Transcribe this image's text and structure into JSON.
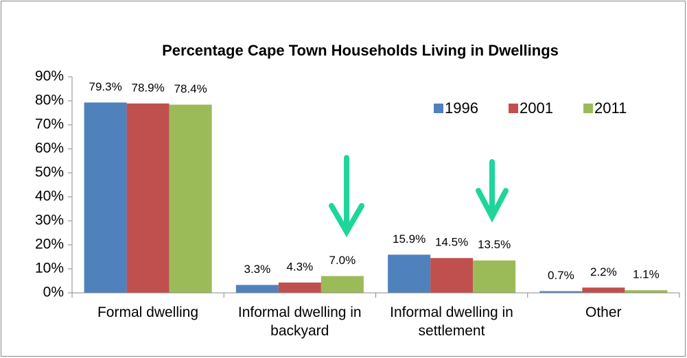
{
  "chart_data": {
    "type": "bar",
    "title": "Percentage Cape Town Households Living in Dwellings",
    "categories": [
      "Formal dwelling",
      "Informal dwelling in backyard",
      "Informal dwelling in settlement",
      "Other"
    ],
    "series": [
      {
        "name": "1996",
        "color": "#4f81bd",
        "values": [
          79.3,
          3.3,
          15.9,
          0.7
        ],
        "value_labels": [
          "79.3%",
          "3.3%",
          "15.9%",
          "0.7%"
        ]
      },
      {
        "name": "2001",
        "color": "#c0504d",
        "values": [
          78.9,
          4.3,
          14.5,
          2.2
        ],
        "value_labels": [
          "78.9%",
          "4.3%",
          "14.5%",
          "2.2%"
        ]
      },
      {
        "name": "2011",
        "color": "#9bbb59",
        "values": [
          78.4,
          7.0,
          13.5,
          1.1
        ],
        "value_labels": [
          "78.4%",
          "7.0%",
          "13.5%",
          "1.1%"
        ]
      }
    ],
    "ylim": [
      0,
      90
    ],
    "yticks": [
      {
        "value": 0,
        "label": "0%"
      },
      {
        "value": 10,
        "label": "10%"
      },
      {
        "value": 20,
        "label": "20%"
      },
      {
        "value": 30,
        "label": "30%"
      },
      {
        "value": 40,
        "label": "40%"
      },
      {
        "value": 50,
        "label": "50%"
      },
      {
        "value": 60,
        "label": "60%"
      },
      {
        "value": 70,
        "label": "70%"
      },
      {
        "value": 80,
        "label": "80%"
      },
      {
        "value": 90,
        "label": "90%"
      }
    ],
    "legend": "top-right",
    "grid": false
  }
}
